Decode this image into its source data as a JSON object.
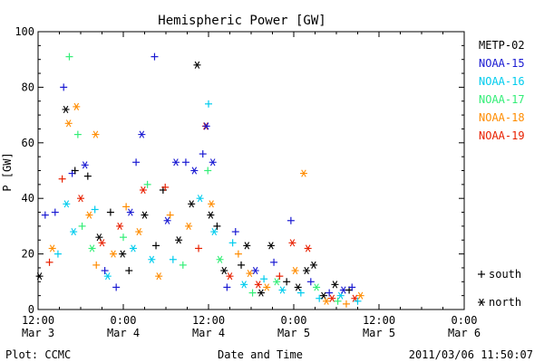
{
  "chart_data": {
    "type": "scatter",
    "title": "Hemispheric Power [GW]",
    "ylabel": "P [GW]",
    "xlabel": "Date and Time",
    "ylim": [
      0,
      100
    ],
    "y_ticks": [
      0,
      20,
      40,
      60,
      80,
      100
    ],
    "x_axis_range": [
      "2011-03-03 12:00",
      "2011-03-07 00:00"
    ],
    "x_ticks": [
      {
        "time": "12:00",
        "date": "Mar 3"
      },
      {
        "time": "0:00",
        "date": "Mar 4"
      },
      {
        "time": "12:00",
        "date": "Mar 4"
      },
      {
        "time": "0:00",
        "date": "Mar 5"
      },
      {
        "time": "12:00",
        "date": "Mar 5"
      },
      {
        "time": "0:00",
        "date": "Mar 6"
      }
    ],
    "grid": false,
    "legend_position": "right",
    "series": [
      {
        "name": "METP-02",
        "color": "#000000"
      },
      {
        "name": "NOAA-15",
        "color": "#1a1ad2"
      },
      {
        "name": "NOAA-16",
        "color": "#00ccee"
      },
      {
        "name": "NOAA-17",
        "color": "#33ee77"
      },
      {
        "name": "NOAA-18",
        "color": "#ff8c00"
      },
      {
        "name": "NOAA-19",
        "color": "#e82000"
      }
    ],
    "marker_legend": [
      {
        "symbol": "+",
        "label": "south"
      },
      {
        "symbol": "*",
        "label": "north"
      }
    ],
    "points": [
      {
        "s": 0,
        "t": 0.2,
        "y": 12,
        "m": "*"
      },
      {
        "s": 1,
        "t": 1.0,
        "y": 34,
        "m": "+"
      },
      {
        "s": 5,
        "t": 1.6,
        "y": 17,
        "m": "+"
      },
      {
        "s": 4,
        "t": 2.0,
        "y": 22,
        "m": "*"
      },
      {
        "s": 1,
        "t": 2.4,
        "y": 35,
        "m": "+"
      },
      {
        "s": 2,
        "t": 2.8,
        "y": 20,
        "m": "+"
      },
      {
        "s": 1,
        "t": 3.6,
        "y": 80,
        "m": "+"
      },
      {
        "s": 0,
        "t": 3.9,
        "y": 72,
        "m": "*"
      },
      {
        "s": 3,
        "t": 4.4,
        "y": 91,
        "m": "+"
      },
      {
        "s": 4,
        "t": 4.3,
        "y": 67,
        "m": "*"
      },
      {
        "s": 5,
        "t": 3.4,
        "y": 47,
        "m": "+"
      },
      {
        "s": 2,
        "t": 4.0,
        "y": 38,
        "m": "*"
      },
      {
        "s": 1,
        "t": 4.8,
        "y": 49,
        "m": "+"
      },
      {
        "s": 3,
        "t": 5.6,
        "y": 63,
        "m": "+"
      },
      {
        "s": 4,
        "t": 5.4,
        "y": 73,
        "m": "*"
      },
      {
        "s": 0,
        "t": 5.2,
        "y": 50,
        "m": "+"
      },
      {
        "s": 2,
        "t": 5.0,
        "y": 28,
        "m": "*"
      },
      {
        "s": 1,
        "t": 6.6,
        "y": 52,
        "m": "*"
      },
      {
        "s": 0,
        "t": 7.0,
        "y": 48,
        "m": "+"
      },
      {
        "s": 4,
        "t": 7.2,
        "y": 34,
        "m": "*"
      },
      {
        "s": 3,
        "t": 6.2,
        "y": 30,
        "m": "+"
      },
      {
        "s": 5,
        "t": 6.0,
        "y": 40,
        "m": "*"
      },
      {
        "s": 4,
        "t": 8.1,
        "y": 63,
        "m": "*"
      },
      {
        "s": 2,
        "t": 8.0,
        "y": 36,
        "m": "+"
      },
      {
        "s": 0,
        "t": 8.6,
        "y": 26,
        "m": "*"
      },
      {
        "s": 4,
        "t": 8.2,
        "y": 16,
        "m": "+"
      },
      {
        "s": 5,
        "t": 9.0,
        "y": 24,
        "m": "*"
      },
      {
        "s": 1,
        "t": 9.4,
        "y": 14,
        "m": "+"
      },
      {
        "s": 3,
        "t": 7.6,
        "y": 22,
        "m": "*"
      },
      {
        "s": 2,
        "t": 9.8,
        "y": 12,
        "m": "*"
      },
      {
        "s": 0,
        "t": 10.2,
        "y": 35,
        "m": "+"
      },
      {
        "s": 4,
        "t": 10.6,
        "y": 20,
        "m": "*"
      },
      {
        "s": 1,
        "t": 11.0,
        "y": 8,
        "m": "+"
      },
      {
        "s": 5,
        "t": 11.5,
        "y": 30,
        "m": "*"
      },
      {
        "s": 0,
        "t": 11.9,
        "y": 20,
        "m": "*"
      },
      {
        "s": 4,
        "t": 12.4,
        "y": 37,
        "m": "+"
      },
      {
        "s": 3,
        "t": 12.0,
        "y": 26,
        "m": "+"
      },
      {
        "s": 1,
        "t": 13.0,
        "y": 35,
        "m": "*"
      },
      {
        "s": 0,
        "t": 12.8,
        "y": 14,
        "m": "+"
      },
      {
        "s": 2,
        "t": 13.4,
        "y": 22,
        "m": "*"
      },
      {
        "s": 1,
        "t": 13.8,
        "y": 53,
        "m": "+"
      },
      {
        "s": 1,
        "t": 14.6,
        "y": 63,
        "m": "*"
      },
      {
        "s": 4,
        "t": 14.2,
        "y": 28,
        "m": "*"
      },
      {
        "s": 0,
        "t": 15.0,
        "y": 34,
        "m": "*"
      },
      {
        "s": 5,
        "t": 14.8,
        "y": 43,
        "m": "*"
      },
      {
        "s": 3,
        "t": 15.4,
        "y": 45,
        "m": "+"
      },
      {
        "s": 1,
        "t": 16.4,
        "y": 91,
        "m": "+"
      },
      {
        "s": 2,
        "t": 16.0,
        "y": 18,
        "m": "*"
      },
      {
        "s": 0,
        "t": 16.6,
        "y": 23,
        "m": "+"
      },
      {
        "s": 4,
        "t": 17.0,
        "y": 12,
        "m": "*"
      },
      {
        "s": 0,
        "t": 17.6,
        "y": 43,
        "m": "+"
      },
      {
        "s": 5,
        "t": 17.9,
        "y": 44,
        "m": "+"
      },
      {
        "s": 1,
        "t": 18.2,
        "y": 32,
        "m": "*"
      },
      {
        "s": 4,
        "t": 18.6,
        "y": 34,
        "m": "+"
      },
      {
        "s": 2,
        "t": 19.0,
        "y": 18,
        "m": "+"
      },
      {
        "s": 1,
        "t": 19.4,
        "y": 53,
        "m": "*"
      },
      {
        "s": 0,
        "t": 19.8,
        "y": 25,
        "m": "*"
      },
      {
        "s": 3,
        "t": 20.4,
        "y": 16,
        "m": "+"
      },
      {
        "s": 1,
        "t": 20.8,
        "y": 53,
        "m": "+"
      },
      {
        "s": 4,
        "t": 21.2,
        "y": 30,
        "m": "*"
      },
      {
        "s": 0,
        "t": 21.6,
        "y": 38,
        "m": "*"
      },
      {
        "s": 1,
        "t": 22.0,
        "y": 50,
        "m": "*"
      },
      {
        "s": 0,
        "t": 22.4,
        "y": 88,
        "m": "*"
      },
      {
        "s": 5,
        "t": 22.6,
        "y": 22,
        "m": "+"
      },
      {
        "s": 2,
        "t": 22.8,
        "y": 40,
        "m": "*"
      },
      {
        "s": 1,
        "t": 23.2,
        "y": 56,
        "m": "+"
      },
      {
        "s": 5,
        "t": 23.6,
        "y": 66,
        "m": "*"
      },
      {
        "s": 1,
        "t": 23.7,
        "y": 66,
        "m": "*"
      },
      {
        "s": 2,
        "t": 24.0,
        "y": 74,
        "m": "+"
      },
      {
        "s": 3,
        "t": 23.9,
        "y": 50,
        "m": "+"
      },
      {
        "s": 1,
        "t": 24.6,
        "y": 53,
        "m": "*"
      },
      {
        "s": 0,
        "t": 24.3,
        "y": 34,
        "m": "*"
      },
      {
        "s": 4,
        "t": 24.4,
        "y": 38,
        "m": "*"
      },
      {
        "s": 2,
        "t": 24.8,
        "y": 28,
        "m": "*"
      },
      {
        "s": 0,
        "t": 25.2,
        "y": 30,
        "m": "+"
      },
      {
        "s": 3,
        "t": 25.6,
        "y": 18,
        "m": "*"
      },
      {
        "s": 0,
        "t": 26.2,
        "y": 14,
        "m": "*"
      },
      {
        "s": 1,
        "t": 26.6,
        "y": 8,
        "m": "+"
      },
      {
        "s": 5,
        "t": 27.0,
        "y": 12,
        "m": "*"
      },
      {
        "s": 2,
        "t": 27.4,
        "y": 24,
        "m": "+"
      },
      {
        "s": 1,
        "t": 27.8,
        "y": 28,
        "m": "+"
      },
      {
        "s": 4,
        "t": 28.2,
        "y": 20,
        "m": "+"
      },
      {
        "s": 0,
        "t": 28.6,
        "y": 16,
        "m": "+"
      },
      {
        "s": 2,
        "t": 29.0,
        "y": 9,
        "m": "*"
      },
      {
        "s": 0,
        "t": 29.4,
        "y": 23,
        "m": "*"
      },
      {
        "s": 4,
        "t": 29.8,
        "y": 13,
        "m": "*"
      },
      {
        "s": 3,
        "t": 30.2,
        "y": 6,
        "m": "+"
      },
      {
        "s": 1,
        "t": 30.6,
        "y": 14,
        "m": "*"
      },
      {
        "s": 5,
        "t": 31.0,
        "y": 9,
        "m": "*"
      },
      {
        "s": 0,
        "t": 31.4,
        "y": 6,
        "m": "*"
      },
      {
        "s": 2,
        "t": 31.8,
        "y": 11,
        "m": "+"
      },
      {
        "s": 4,
        "t": 32.2,
        "y": 8,
        "m": "*"
      },
      {
        "s": 0,
        "t": 32.8,
        "y": 23,
        "m": "*"
      },
      {
        "s": 1,
        "t": 33.2,
        "y": 17,
        "m": "+"
      },
      {
        "s": 3,
        "t": 33.6,
        "y": 10,
        "m": "*"
      },
      {
        "s": 5,
        "t": 34.0,
        "y": 12,
        "m": "+"
      },
      {
        "s": 2,
        "t": 34.4,
        "y": 7,
        "m": "*"
      },
      {
        "s": 0,
        "t": 35.0,
        "y": 10,
        "m": "+"
      },
      {
        "s": 1,
        "t": 35.6,
        "y": 32,
        "m": "+"
      },
      {
        "s": 5,
        "t": 35.8,
        "y": 24,
        "m": "*"
      },
      {
        "s": 4,
        "t": 36.2,
        "y": 14,
        "m": "*"
      },
      {
        "s": 0,
        "t": 36.6,
        "y": 8,
        "m": "*"
      },
      {
        "s": 2,
        "t": 37.0,
        "y": 6,
        "m": "+"
      },
      {
        "s": 4,
        "t": 37.4,
        "y": 49,
        "m": "*"
      },
      {
        "s": 0,
        "t": 37.8,
        "y": 14,
        "m": "*"
      },
      {
        "s": 5,
        "t": 38.0,
        "y": 22,
        "m": "*"
      },
      {
        "s": 1,
        "t": 38.4,
        "y": 10,
        "m": "+"
      },
      {
        "s": 0,
        "t": 38.8,
        "y": 16,
        "m": "*"
      },
      {
        "s": 3,
        "t": 39.2,
        "y": 8,
        "m": "*"
      },
      {
        "s": 2,
        "t": 39.6,
        "y": 4,
        "m": "+"
      },
      {
        "s": 0,
        "t": 40.2,
        "y": 5,
        "m": "*"
      },
      {
        "s": 4,
        "t": 40.6,
        "y": 3,
        "m": "*"
      },
      {
        "s": 1,
        "t": 41.0,
        "y": 6,
        "m": "+"
      },
      {
        "s": 5,
        "t": 41.4,
        "y": 4,
        "m": "*"
      },
      {
        "s": 0,
        "t": 41.8,
        "y": 9,
        "m": "*"
      },
      {
        "s": 3,
        "t": 42.2,
        "y": 3,
        "m": "+"
      },
      {
        "s": 2,
        "t": 42.6,
        "y": 5,
        "m": "*"
      },
      {
        "s": 1,
        "t": 43.0,
        "y": 7,
        "m": "*"
      },
      {
        "s": 4,
        "t": 43.4,
        "y": 2,
        "m": "+"
      },
      {
        "s": 0,
        "t": 43.8,
        "y": 7,
        "m": "+"
      },
      {
        "s": 1,
        "t": 44.2,
        "y": 8,
        "m": "+"
      },
      {
        "s": 5,
        "t": 44.6,
        "y": 4,
        "m": "*"
      },
      {
        "s": 2,
        "t": 45.0,
        "y": 3,
        "m": "+"
      },
      {
        "s": 4,
        "t": 45.4,
        "y": 5,
        "m": "*"
      }
    ]
  },
  "footer": {
    "plot_source": "Plot: CCMC",
    "timestamp": "2011/03/06 11:50:07"
  }
}
